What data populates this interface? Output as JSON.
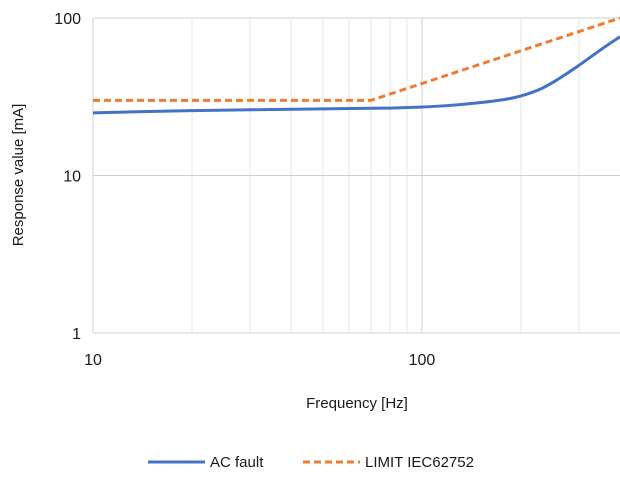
{
  "chart_data": {
    "type": "line",
    "title": "",
    "xlabel": "Frequency [Hz]",
    "ylabel": "Response value [mA]",
    "x_scale": "log",
    "y_scale": "log",
    "xlim": [
      10,
      400
    ],
    "ylim": [
      1,
      100
    ],
    "x_ticks": [
      10,
      100
    ],
    "x_tick_labels": [
      "10",
      "100"
    ],
    "y_ticks": [
      1,
      10,
      100
    ],
    "y_tick_labels": [
      "1",
      "10",
      "100"
    ],
    "grid": true,
    "legend_position": "bottom",
    "series": [
      {
        "name": "AC fault",
        "color": "#4472C4",
        "style": "solid",
        "x": [
          10,
          20,
          50,
          80,
          100,
          120,
          150,
          180,
          200,
          230,
          260,
          300,
          350,
          400
        ],
        "y": [
          25,
          25.8,
          26.5,
          26.8,
          27.2,
          27.8,
          29,
          30.5,
          32,
          35.5,
          41,
          50,
          63,
          76
        ]
      },
      {
        "name": "LIMIT IEC62752",
        "color": "#ED7D31",
        "style": "dashed",
        "x": [
          10,
          70,
          400
        ],
        "y": [
          30,
          30,
          100
        ]
      }
    ]
  }
}
